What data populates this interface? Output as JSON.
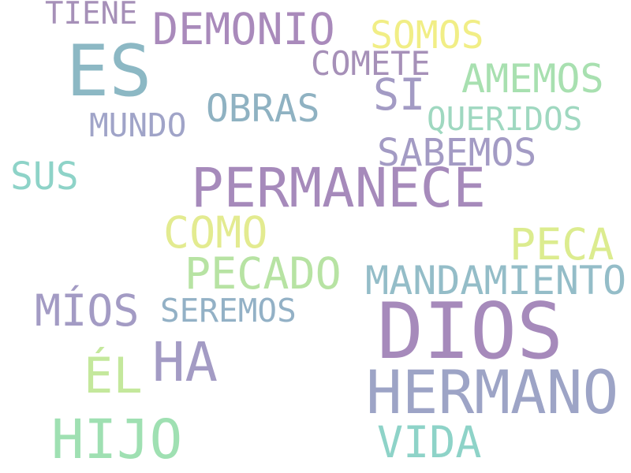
{
  "words": [
    {
      "text": "TIENE",
      "color": "#a690b8"
    },
    {
      "text": "DEMONIO",
      "color": "#a98abb"
    },
    {
      "text": "SOMOS",
      "color": "#f1ee86"
    },
    {
      "text": "ES",
      "color": "#8cb8c4"
    },
    {
      "text": "COMETE",
      "color": "#a690b8"
    },
    {
      "text": "AMEMOS",
      "color": "#a8e0b0"
    },
    {
      "text": "SI",
      "color": "#a39bc4"
    },
    {
      "text": "OBRAS",
      "color": "#8fb2c2"
    },
    {
      "text": "QUERIDOS",
      "color": "#9fd8c0"
    },
    {
      "text": "MUNDO",
      "color": "#a0a4c8"
    },
    {
      "text": "SABEMOS",
      "color": "#a39bc4"
    },
    {
      "text": "SUS",
      "color": "#8ed3c8"
    },
    {
      "text": "PERMANECE",
      "color": "#a68abb"
    },
    {
      "text": "COMO",
      "color": "#e3eb90"
    },
    {
      "text": "PECA",
      "color": "#dcec8f"
    },
    {
      "text": "PECADO",
      "color": "#b7e3a3"
    },
    {
      "text": "MANDAMIENTO",
      "color": "#94bdc8"
    },
    {
      "text": "MÍOS",
      "color": "#a39bc4"
    },
    {
      "text": "SEREMOS",
      "color": "#93b1c6"
    },
    {
      "text": "DIOS",
      "color": "#a68abb"
    },
    {
      "text": "HA",
      "color": "#a39bc4"
    },
    {
      "text": "ÉL",
      "color": "#c4e89c"
    },
    {
      "text": "HERMANO",
      "color": "#9da4c6"
    },
    {
      "text": "HIJO",
      "color": "#9fe0b2"
    },
    {
      "text": "VIDA",
      "color": "#8ed3c8"
    }
  ]
}
